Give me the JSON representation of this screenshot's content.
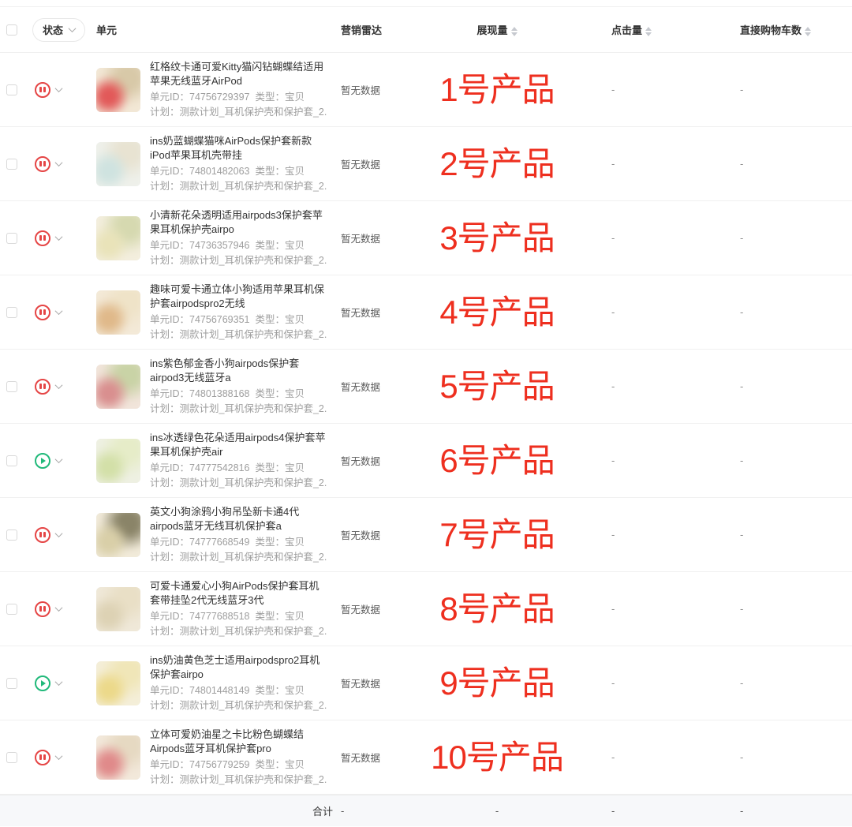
{
  "header": {
    "status_filter": "状态",
    "columns": {
      "unit": "单元",
      "radar": "营销雷达",
      "impressions": "展现量",
      "clicks": "点击量",
      "carts": "直接购物车数"
    }
  },
  "labels": {
    "unit_id": "单元ID：",
    "type": "类型：",
    "plan": "计划："
  },
  "rows": [
    {
      "status": "paused",
      "title": "红格纹卡通可爱Kitty猫闪钻蝴蝶结适用苹果无线蓝牙AirPod",
      "unit_id": "74756729397",
      "type": "宝贝",
      "plan": "测款计划_耳机保护壳和保护套_2...",
      "radar": "暂无数据",
      "annotation": "1号产品",
      "clicks": "-",
      "carts": "-",
      "thumb": [
        "#f2e7d5",
        "#e25959",
        "#d8c9a8"
      ]
    },
    {
      "status": "paused",
      "title": "ins奶蓝蝴蝶猫咪AirPods保护套新款iPod苹果耳机壳带挂",
      "unit_id": "74801482063",
      "type": "宝贝",
      "plan": "测款计划_耳机保护壳和保护套_2...",
      "radar": "暂无数据",
      "annotation": "2号产品",
      "clicks": "-",
      "carts": "-",
      "thumb": [
        "#eef0ea",
        "#cfe3e0",
        "#e8e3d2"
      ]
    },
    {
      "status": "paused",
      "title": "小清新花朵透明适用airpods3保护套苹果耳机保护壳airpo",
      "unit_id": "74736357946",
      "type": "宝贝",
      "plan": "测款计划_耳机保护壳和保护套_2...",
      "radar": "暂无数据",
      "annotation": "3号产品",
      "clicks": "-",
      "carts": "-",
      "thumb": [
        "#f3eedd",
        "#e9e3b9",
        "#d6d9b0"
      ]
    },
    {
      "status": "paused",
      "title": "趣味可爱卡通立体小狗适用苹果耳机保护套airpodspro2无线",
      "unit_id": "74756769351",
      "type": "宝贝",
      "plan": "测款计划_耳机保护壳和保护套_2...",
      "radar": "暂无数据",
      "annotation": "4号产品",
      "clicks": "-",
      "carts": "-",
      "thumb": [
        "#f3e9d7",
        "#e0b98a",
        "#efe3c8"
      ]
    },
    {
      "status": "paused",
      "title": "ins紫色郁金香小狗airpods保护套airpod3无线蓝牙a",
      "unit_id": "74801388168",
      "type": "宝贝",
      "plan": "测款计划_耳机保护壳和保护套_2...",
      "radar": "暂无数据",
      "annotation": "5号产品",
      "clicks": "-",
      "carts": "-",
      "thumb": [
        "#f1e4da",
        "#d98f8f",
        "#c9d3a6"
      ]
    },
    {
      "status": "active",
      "title": "ins冰透绿色花朵适用airpods4保护套苹果耳机保护壳air",
      "unit_id": "74777542816",
      "type": "宝贝",
      "plan": "测款计划_耳机保护壳和保护套_2...",
      "radar": "暂无数据",
      "annotation": "6号产品",
      "clicks": "-",
      "carts": "-",
      "thumb": [
        "#eef0e2",
        "#d3e0a8",
        "#e6ecc8"
      ]
    },
    {
      "status": "paused",
      "title": "英文小狗涂鸦小狗吊坠新卡通4代airpods蓝牙无线耳机保护套a",
      "unit_id": "74777668549",
      "type": "宝贝",
      "plan": "测款计划_耳机保护壳和保护套_2...",
      "radar": "暂无数据",
      "annotation": "7号产品",
      "clicks": "-",
      "carts": "-",
      "thumb": [
        "#f1ead9",
        "#d9cfa8",
        "#8a8468"
      ]
    },
    {
      "status": "paused",
      "title": "可爱卡通爱心小狗AirPods保护套耳机套带挂坠2代无线蓝牙3代",
      "unit_id": "74777688518",
      "type": "宝贝",
      "plan": "测款计划_耳机保护壳和保护套_2...",
      "radar": "暂无数据",
      "annotation": "8号产品",
      "clicks": "-",
      "carts": "-",
      "thumb": [
        "#efe8d8",
        "#ddd2b4",
        "#e9dfc6"
      ]
    },
    {
      "status": "active",
      "title": "ins奶油黄色芝士适用airpodspro2耳机保护套airpo",
      "unit_id": "74801448149",
      "type": "宝贝",
      "plan": "测款计划_耳机保护壳和保护套_2...",
      "radar": "暂无数据",
      "annotation": "9号产品",
      "clicks": "-",
      "carts": "-",
      "thumb": [
        "#f4eed8",
        "#ecd98a",
        "#f0e6b8"
      ]
    },
    {
      "status": "paused",
      "title": "立体可爱奶油星之卡比粉色蝴蝶结Airpods蓝牙耳机保护套pro",
      "unit_id": "74756779259",
      "type": "宝贝",
      "plan": "测款计划_耳机保护壳和保护套_2...",
      "radar": "暂无数据",
      "annotation": "10号产品",
      "clicks": "-",
      "carts": "-",
      "thumb": [
        "#f2e8da",
        "#e08a8a",
        "#e6d9c2"
      ]
    }
  ],
  "footer": {
    "total_label": "合计",
    "radar": "-",
    "impressions": "-",
    "clicks": "-",
    "carts": "-"
  },
  "colors": {
    "status_paused": "#e54545",
    "status_active": "#21b97a",
    "annotation": "#ee2f1f"
  }
}
